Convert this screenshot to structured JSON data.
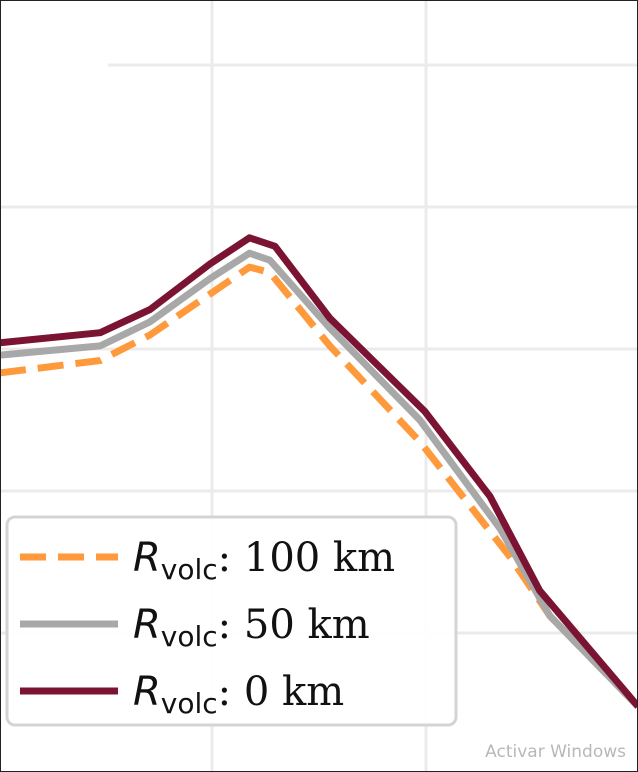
{
  "chart_data": {
    "type": "line",
    "xlim": [
      0,
      10
    ],
    "ylim": [
      0,
      10
    ],
    "grid": true,
    "legend_placement": "lower-left",
    "series": [
      {
        "name": "R_volc: 100 km",
        "label_symbol": "R",
        "label_sub": "volc",
        "label_rest": ": 100 km",
        "color": "#FF9A3C",
        "style": "dashed",
        "x": [
          0,
          1.57,
          2.35,
          3.29,
          3.91,
          4.23,
          5.17,
          6.58,
          7.99,
          8.62,
          10
        ],
        "y": [
          5.17,
          5.33,
          5.66,
          6.19,
          6.54,
          6.47,
          5.52,
          4.28,
          2.79,
          2.02,
          0.85
        ]
      },
      {
        "name": "R_volc: 50 km",
        "label_symbol": "R",
        "label_sub": "volc",
        "label_rest": ": 50 km",
        "color": "#A8A8A8",
        "style": "solid",
        "x": [
          0,
          1.57,
          2.35,
          3.29,
          3.91,
          4.23,
          5.17,
          6.58,
          7.84,
          8.62,
          10
        ],
        "y": [
          5.4,
          5.52,
          5.83,
          6.39,
          6.72,
          6.63,
          5.75,
          4.56,
          3.15,
          2.02,
          0.85
        ]
      },
      {
        "name": "R_volc: 0 km",
        "label_symbol": "R",
        "label_sub": "volc",
        "label_rest": ": 0 km",
        "color": "#7A1432",
        "style": "solid",
        "x": [
          0,
          1.57,
          2.35,
          3.29,
          3.91,
          4.31,
          5.17,
          6.66,
          7.68,
          8.46,
          10
        ],
        "y": [
          5.56,
          5.69,
          5.99,
          6.58,
          6.92,
          6.81,
          5.88,
          4.67,
          3.57,
          2.35,
          0.85
        ]
      }
    ]
  },
  "watermark": "Activar Windows"
}
